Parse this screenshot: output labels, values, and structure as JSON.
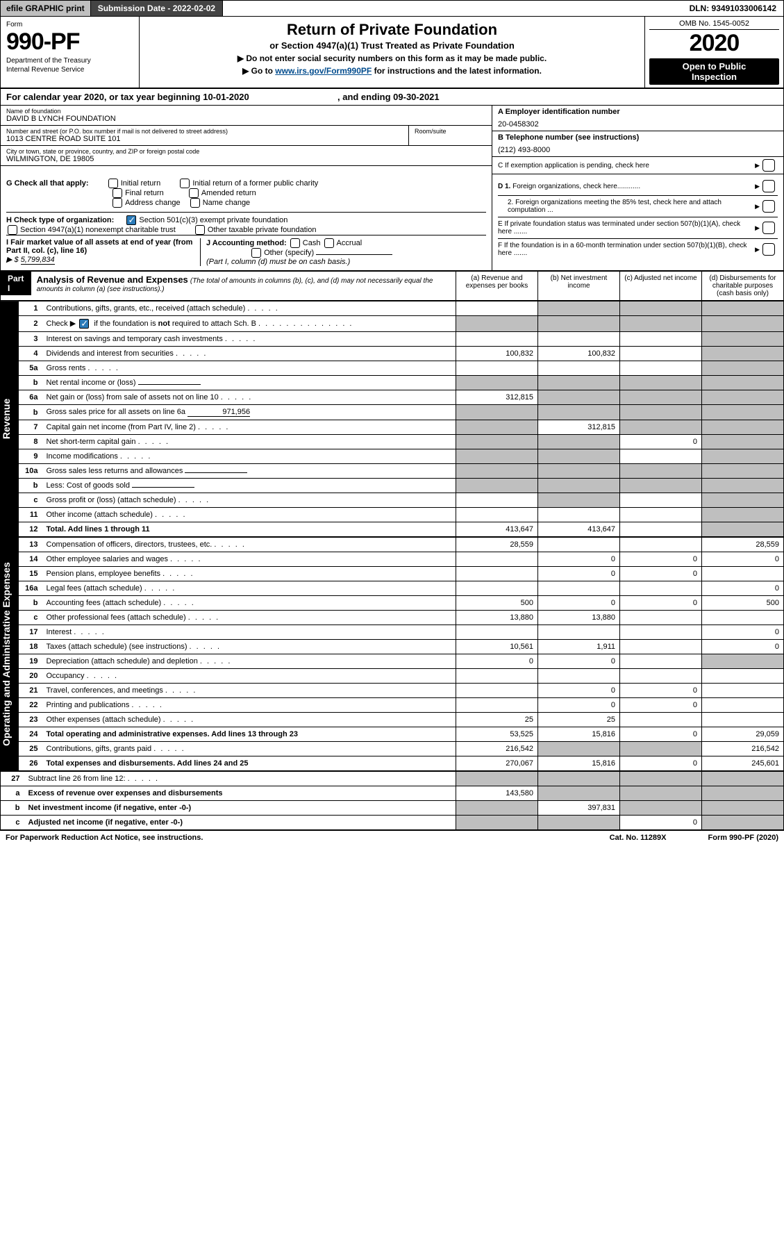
{
  "topbar": {
    "efile": "efile GRAPHIC print",
    "subdate_label": "Submission Date - 2022-02-02",
    "dln": "DLN: 93491033006142"
  },
  "header": {
    "form_label": "Form",
    "form_no": "990-PF",
    "dept1": "Department of the Treasury",
    "dept2": "Internal Revenue Service",
    "title": "Return of Private Foundation",
    "sub1": "or Section 4947(a)(1) Trust Treated as Private Foundation",
    "sub2": "▶ Do not enter social security numbers on this form as it may be made public.",
    "sub3_pre": "▶ Go to ",
    "sub3_link": "www.irs.gov/Form990PF",
    "sub3_post": " for instructions and the latest information.",
    "omb": "OMB No. 1545-0052",
    "year": "2020",
    "openpub1": "Open to Public",
    "openpub2": "Inspection"
  },
  "calyear": {
    "text_a": "For calendar year 2020, or tax year beginning 10-01-2020",
    "text_b": ", and ending 09-30-2021"
  },
  "ident": {
    "name_lbl": "Name of foundation",
    "name_val": "DAVID B LYNCH FOUNDATION",
    "addr_lbl": "Number and street (or P.O. box number if mail is not delivered to street address)",
    "addr_val": "1013 CENTRE ROAD SUITE 101",
    "room_lbl": "Room/suite",
    "city_lbl": "City or town, state or province, country, and ZIP or foreign postal code",
    "city_val": "WILMINGTON, DE  19805",
    "ein_lbl": "A Employer identification number",
    "ein_val": "20-0458302",
    "tel_lbl": "B Telephone number (see instructions)",
    "tel_val": "(212) 493-8000",
    "c_lbl": "C If exemption application is pending, check here"
  },
  "gblock": {
    "g_lbl": "G Check all that apply:",
    "g_opts": [
      "Initial return",
      "Final return",
      "Address change",
      "Initial return of a former public charity",
      "Amended return",
      "Name change"
    ],
    "h_lbl": "H Check type of organization:",
    "h_opt1": "Section 501(c)(3) exempt private foundation",
    "h_opt2": "Section 4947(a)(1) nonexempt charitable trust",
    "h_opt3": "Other taxable private foundation",
    "i_lbl": "I Fair market value of all assets at end of year (from Part II, col. (c), line 16)",
    "i_val": "5,799,834",
    "j_lbl": "J Accounting method:",
    "j_cash": "Cash",
    "j_accrual": "Accrual",
    "j_other": "Other (specify)",
    "j_note": "(Part I, column (d) must be on cash basis.)",
    "d1": "D 1. Foreign organizations, check here............",
    "d2": "2. Foreign organizations meeting the 85% test, check here and attach computation ...",
    "e_lbl": "E  If private foundation status was terminated under section 507(b)(1)(A), check here .......",
    "f_lbl": "F  If the foundation is in a 60-month termination under section 507(b)(1)(B), check here .......",
    "arrow": "▶"
  },
  "part1": {
    "label": "Part I",
    "title": "Analysis of Revenue and Expenses",
    "title_note": " (The total of amounts in columns (b), (c), and (d) may not necessarily equal the amounts in column (a) (see instructions).)",
    "col_a": "(a) Revenue and expenses per books",
    "col_b": "(b) Net investment income",
    "col_c": "(c) Adjusted net income",
    "col_d": "(d) Disbursements for charitable purposes (cash basis only)"
  },
  "sections": {
    "revenue": "Revenue",
    "opexp": "Operating and Administrative Expenses"
  },
  "rows": [
    {
      "n": "1",
      "d": "Contributions, gifts, grants, etc., received (attach schedule)",
      "a": "",
      "b": "g",
      "c": "g",
      "dd": "g"
    },
    {
      "n": "2",
      "d": "Check ▶ ☑ if the foundation is not required to attach Sch. B",
      "a": "g",
      "b": "g",
      "c": "g",
      "dd": "g",
      "chk": true
    },
    {
      "n": "3",
      "d": "Interest on savings and temporary cash investments",
      "a": "",
      "b": "",
      "c": "",
      "dd": "g"
    },
    {
      "n": "4",
      "d": "Dividends and interest from securities",
      "a": "100,832",
      "b": "100,832",
      "c": "",
      "dd": "g"
    },
    {
      "n": "5a",
      "d": "Gross rents",
      "a": "",
      "b": "",
      "c": "",
      "dd": "g"
    },
    {
      "n": "b",
      "d": "Net rental income or (loss)",
      "a": "g",
      "b": "g",
      "c": "g",
      "dd": "g",
      "inline": ""
    },
    {
      "n": "6a",
      "d": "Net gain or (loss) from sale of assets not on line 10",
      "a": "312,815",
      "b": "g",
      "c": "g",
      "dd": "g"
    },
    {
      "n": "b",
      "d": "Gross sales price for all assets on line 6a",
      "a": "g",
      "b": "g",
      "c": "g",
      "dd": "g",
      "inline": "971,956"
    },
    {
      "n": "7",
      "d": "Capital gain net income (from Part IV, line 2)",
      "a": "g",
      "b": "312,815",
      "c": "g",
      "dd": "g"
    },
    {
      "n": "8",
      "d": "Net short-term capital gain",
      "a": "g",
      "b": "g",
      "c": "0",
      "dd": "g"
    },
    {
      "n": "9",
      "d": "Income modifications",
      "a": "g",
      "b": "g",
      "c": "",
      "dd": "g"
    },
    {
      "n": "10a",
      "d": "Gross sales less returns and allowances",
      "a": "g",
      "b": "g",
      "c": "g",
      "dd": "g",
      "inline": ""
    },
    {
      "n": "b",
      "d": "Less: Cost of goods sold",
      "a": "g",
      "b": "g",
      "c": "g",
      "dd": "g",
      "inline": ""
    },
    {
      "n": "c",
      "d": "Gross profit or (loss) (attach schedule)",
      "a": "",
      "b": "g",
      "c": "",
      "dd": "g"
    },
    {
      "n": "11",
      "d": "Other income (attach schedule)",
      "a": "",
      "b": "",
      "c": "",
      "dd": "g"
    },
    {
      "n": "12",
      "d": "Total. Add lines 1 through 11",
      "a": "413,647",
      "b": "413,647",
      "c": "",
      "dd": "g",
      "bold": true
    }
  ],
  "rows2": [
    {
      "n": "13",
      "d": "Compensation of officers, directors, trustees, etc.",
      "a": "28,559",
      "b": "",
      "c": "",
      "dd": "28,559"
    },
    {
      "n": "14",
      "d": "Other employee salaries and wages",
      "a": "",
      "b": "0",
      "c": "0",
      "dd": "0"
    },
    {
      "n": "15",
      "d": "Pension plans, employee benefits",
      "a": "",
      "b": "0",
      "c": "0",
      "dd": ""
    },
    {
      "n": "16a",
      "d": "Legal fees (attach schedule)",
      "a": "",
      "b": "",
      "c": "",
      "dd": "0"
    },
    {
      "n": "b",
      "d": "Accounting fees (attach schedule)",
      "a": "500",
      "b": "0",
      "c": "0",
      "dd": "500"
    },
    {
      "n": "c",
      "d": "Other professional fees (attach schedule)",
      "a": "13,880",
      "b": "13,880",
      "c": "",
      "dd": ""
    },
    {
      "n": "17",
      "d": "Interest",
      "a": "",
      "b": "",
      "c": "",
      "dd": "0"
    },
    {
      "n": "18",
      "d": "Taxes (attach schedule) (see instructions)",
      "a": "10,561",
      "b": "1,911",
      "c": "",
      "dd": "0"
    },
    {
      "n": "19",
      "d": "Depreciation (attach schedule) and depletion",
      "a": "0",
      "b": "0",
      "c": "",
      "dd": "g"
    },
    {
      "n": "20",
      "d": "Occupancy",
      "a": "",
      "b": "",
      "c": "",
      "dd": ""
    },
    {
      "n": "21",
      "d": "Travel, conferences, and meetings",
      "a": "",
      "b": "0",
      "c": "0",
      "dd": ""
    },
    {
      "n": "22",
      "d": "Printing and publications",
      "a": "",
      "b": "0",
      "c": "0",
      "dd": ""
    },
    {
      "n": "23",
      "d": "Other expenses (attach schedule)",
      "a": "25",
      "b": "25",
      "c": "",
      "dd": ""
    },
    {
      "n": "24",
      "d": "Total operating and administrative expenses. Add lines 13 through 23",
      "a": "53,525",
      "b": "15,816",
      "c": "0",
      "dd": "29,059",
      "bold": true
    },
    {
      "n": "25",
      "d": "Contributions, gifts, grants paid",
      "a": "216,542",
      "b": "g",
      "c": "g",
      "dd": "216,542"
    },
    {
      "n": "26",
      "d": "Total expenses and disbursements. Add lines 24 and 25",
      "a": "270,067",
      "b": "15,816",
      "c": "0",
      "dd": "245,601",
      "bold": true
    }
  ],
  "rows3": [
    {
      "n": "27",
      "d": "Subtract line 26 from line 12:",
      "a": "g",
      "b": "g",
      "c": "g",
      "dd": "g"
    },
    {
      "n": "a",
      "d": "Excess of revenue over expenses and disbursements",
      "a": "143,580",
      "b": "g",
      "c": "g",
      "dd": "g",
      "bold": true
    },
    {
      "n": "b",
      "d": "Net investment income (if negative, enter -0-)",
      "a": "g",
      "b": "397,831",
      "c": "g",
      "dd": "g",
      "bold": true
    },
    {
      "n": "c",
      "d": "Adjusted net income (if negative, enter -0-)",
      "a": "g",
      "b": "g",
      "c": "0",
      "dd": "g",
      "bold": true
    }
  ],
  "footer": {
    "left": "For Paperwork Reduction Act Notice, see instructions.",
    "cat": "Cat. No. 11289X",
    "form": "Form 990-PF (2020)"
  },
  "colors": {
    "grey": "#bfbfbf",
    "darkbar": "#444444",
    "link": "#004b8d",
    "check": "#2b7bb9"
  }
}
